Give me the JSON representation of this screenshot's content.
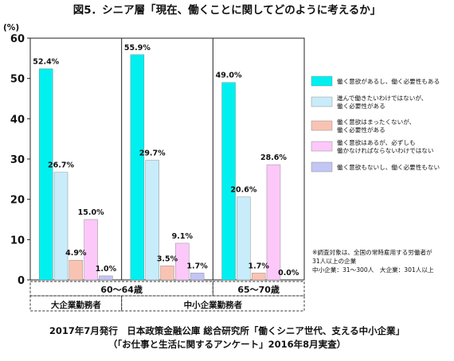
{
  "chart_data": {
    "type": "bar",
    "title": "図5．シニア層「現在、働くことに関してどのように考えるか」",
    "y_unit": "(%)",
    "ylim": [
      0,
      60
    ],
    "yticks": [
      0,
      10,
      20,
      30,
      40,
      50,
      60
    ],
    "grid": false,
    "legend_position": "right",
    "categories": [
      "60～64歳",
      "60～64歳",
      "65～70歳"
    ],
    "age_groups": [
      "60～64歳",
      "65～70歳"
    ],
    "employer_groups": [
      "大企業勤務者",
      "中小企業勤務者"
    ],
    "series": [
      {
        "name": "働く意欲があるし、働く必要性もある",
        "color": "#00f0f0",
        "values": [
          52.4,
          55.9,
          49.0
        ],
        "labels": [
          "52.4%",
          "55.9%",
          "49.0%"
        ]
      },
      {
        "name": "進んで働きたいわけではないが、働く必要性がある",
        "color": "#c8ecfa",
        "values": [
          26.7,
          29.7,
          20.6
        ],
        "labels": [
          "26.7%",
          "29.7%",
          "20.6%"
        ]
      },
      {
        "name": "働く意欲はまったくないが、働く必要性がある",
        "color": "#f9c3b3",
        "values": [
          4.9,
          3.5,
          1.7
        ],
        "labels": [
          "4.9%",
          "3.5%",
          "1.7%"
        ]
      },
      {
        "name": "働く意欲はあるが、必ずしも働かなければならないわけではない",
        "color": "#fcc8f9",
        "values": [
          15.0,
          9.1,
          28.6
        ],
        "labels": [
          "15.0%",
          "9.1%",
          "28.6%"
        ]
      },
      {
        "name": "働く意欲もないし、働く必要性もない",
        "color": "#c3c6f4",
        "values": [
          1.0,
          1.7,
          0.0
        ],
        "labels": [
          "1.0%",
          "1.7%",
          "0.0%"
        ]
      }
    ],
    "note": [
      "※調査対象は、全国の常時雇用する労働者が",
      "31人以上の企業",
      "中小企業：31～300人　大企業：301人以上"
    ],
    "source": [
      "2017年7月発行　日本政策金融公庫 総合研究所「働くシニア世代、支える中小企業」",
      "（「お仕事と生活に関するアンケート」2016年8月実査）"
    ]
  }
}
